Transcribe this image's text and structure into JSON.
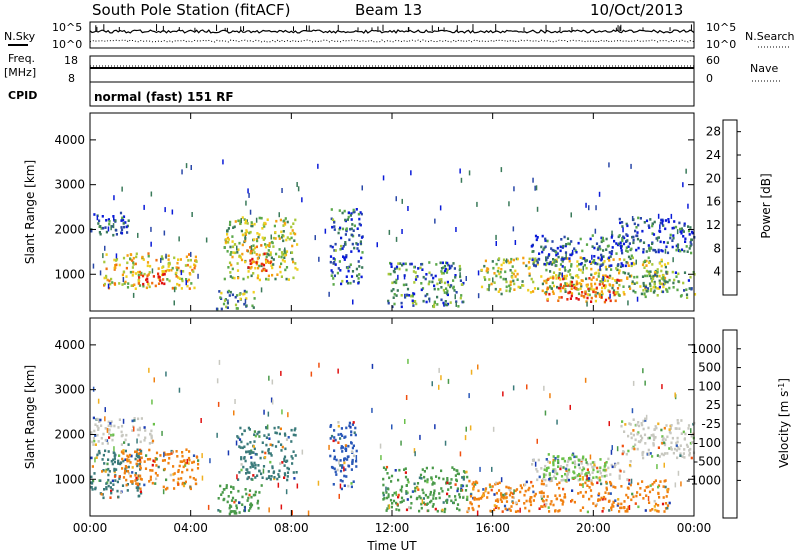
{
  "header": {
    "station": "South Pole Station (fitACF)",
    "beam": "Beam 13",
    "date": "10/Oct/2013"
  },
  "aux_panels": {
    "nsky_label": "N.Sky",
    "nsearch_label": "N.Search",
    "freq_label_1": "Freq.",
    "freq_label_2": "[MHz]",
    "nave_label": "Nave",
    "cpid_label": "CPID",
    "cpid_value": "normal (fast) 151 RF",
    "noise_ticks": [
      "10^5",
      "10^0"
    ],
    "noise_right_ticks": [
      "10^5",
      "10^0"
    ],
    "freq_ticks": [
      "18",
      "8"
    ],
    "nave_ticks": [
      "60",
      "0"
    ]
  },
  "chart_data": [
    {
      "type": "heatmap",
      "panel": "power",
      "xlabel": "Time UT",
      "ylabel": "Slant Range [km]",
      "x_ticks": [
        "00:00",
        "04:00",
        "08:00",
        "12:00",
        "16:00",
        "20:00",
        "00:00"
      ],
      "xlim_hours": [
        0,
        24
      ],
      "ylim": [
        180,
        4600
      ],
      "y_ticks": [
        1000,
        2000,
        3000,
        4000
      ],
      "colorbar": {
        "label": "Power [dB]",
        "ticks": [
          "4",
          "8",
          "12",
          "16",
          "20",
          "24",
          "28"
        ],
        "range": [
          0,
          30
        ],
        "colors": [
          "#0a1bd8",
          "#2a48a8",
          "#3a7a5a",
          "#5aa84a",
          "#a8c83a",
          "#f0d020",
          "#f5a010",
          "#f07010",
          "#e83010",
          "#e01010"
        ]
      },
      "regions": [
        {
          "t0": 0.0,
          "t1": 1.5,
          "r0": 1850,
          "r1": 2400,
          "level": 0.15
        },
        {
          "t0": 0.5,
          "t1": 4.2,
          "r0": 700,
          "r1": 1500,
          "level": 0.55
        },
        {
          "t0": 1.8,
          "t1": 3.0,
          "r0": 800,
          "r1": 1100,
          "level": 0.9
        },
        {
          "t0": 5.0,
          "t1": 6.6,
          "r0": 250,
          "r1": 700,
          "level": 0.35
        },
        {
          "t0": 5.3,
          "t1": 8.2,
          "r0": 900,
          "r1": 2300,
          "level": 0.45
        },
        {
          "t0": 6.2,
          "t1": 7.2,
          "r0": 1100,
          "r1": 1700,
          "level": 0.8
        },
        {
          "t0": 9.5,
          "t1": 10.8,
          "r0": 800,
          "r1": 2500,
          "level": 0.2
        },
        {
          "t0": 11.8,
          "t1": 14.8,
          "r0": 300,
          "r1": 1300,
          "level": 0.25
        },
        {
          "t0": 15.5,
          "t1": 23.0,
          "r0": 550,
          "r1": 1400,
          "level": 0.45
        },
        {
          "t0": 18.0,
          "t1": 21.0,
          "r0": 400,
          "r1": 1000,
          "level": 0.75
        },
        {
          "t0": 17.5,
          "t1": 21.5,
          "r0": 1200,
          "r1": 1900,
          "level": 0.15
        },
        {
          "t0": 21.0,
          "t1": 24.0,
          "r0": 1500,
          "r1": 2300,
          "level": 0.15
        },
        {
          "t0": 22.0,
          "t1": 24.0,
          "r0": 500,
          "r1": 1100,
          "level": 0.3
        }
      ]
    },
    {
      "type": "heatmap",
      "panel": "velocity",
      "xlabel": "Time UT",
      "ylabel": "Slant Range [km]",
      "x_ticks": [
        "00:00",
        "04:00",
        "08:00",
        "12:00",
        "16:00",
        "20:00",
        "00:00"
      ],
      "xlim_hours": [
        0,
        24
      ],
      "ylim": [
        180,
        4600
      ],
      "y_ticks": [
        1000,
        2000,
        3000,
        4000
      ],
      "colorbar": {
        "label": "Velocity [m s^-1]",
        "ticks": [
          "1000",
          "500",
          "100",
          "25",
          "-25",
          "-100",
          "-500",
          "-1000"
        ],
        "colors": [
          "#1838b0",
          "#2a58b8",
          "#3a7a7a",
          "#4a9a4a",
          "#6ac04a",
          "#c8c8c0",
          "#f0b020",
          "#f08010",
          "#f05010",
          "#e01010"
        ]
      },
      "regions": [
        {
          "t0": 0.0,
          "t1": 2.5,
          "r0": 1800,
          "r1": 2400,
          "color": "#c8c8c0"
        },
        {
          "t0": 0.0,
          "t1": 2.0,
          "r0": 600,
          "r1": 1700,
          "color": "#3a7a7a"
        },
        {
          "t0": 1.2,
          "t1": 4.3,
          "r0": 800,
          "r1": 1700,
          "color": "#f08010"
        },
        {
          "t0": 5.0,
          "t1": 6.8,
          "r0": 250,
          "r1": 900,
          "color": "#4a9a4a"
        },
        {
          "t0": 5.8,
          "t1": 8.2,
          "r0": 1000,
          "r1": 2200,
          "color": "#3a7a7a"
        },
        {
          "t0": 9.5,
          "t1": 10.6,
          "r0": 800,
          "r1": 2300,
          "color": "#2a58b8"
        },
        {
          "t0": 11.6,
          "t1": 15.0,
          "r0": 300,
          "r1": 1300,
          "color": "#4a9a4a"
        },
        {
          "t0": 15.0,
          "t1": 23.0,
          "r0": 300,
          "r1": 1000,
          "color": "#f08010"
        },
        {
          "t0": 17.5,
          "t1": 21.5,
          "r0": 1000,
          "r1": 1500,
          "color": "#c8c8c0"
        },
        {
          "t0": 21.0,
          "t1": 24.0,
          "r0": 1500,
          "r1": 2400,
          "color": "#c8c8c0"
        },
        {
          "t0": 18.0,
          "t1": 20.5,
          "r0": 1000,
          "r1": 1600,
          "color": "#6ac04a"
        }
      ]
    }
  ]
}
